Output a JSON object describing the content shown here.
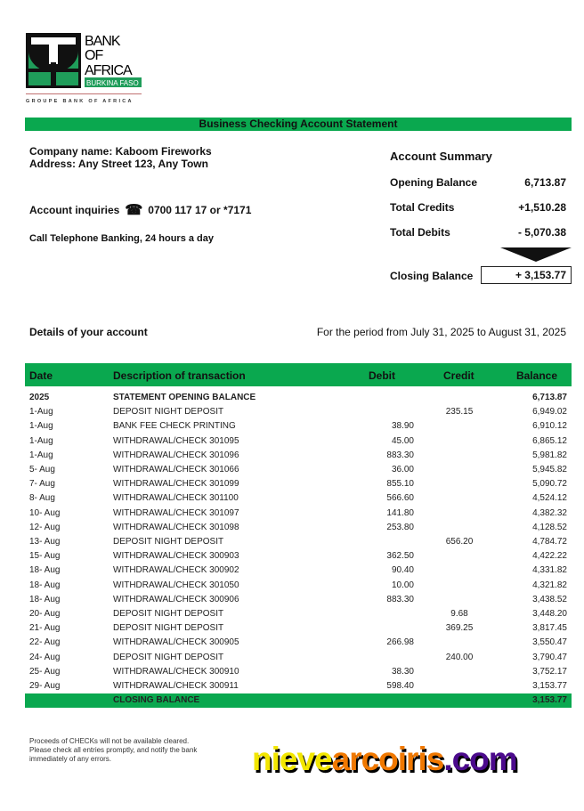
{
  "logo": {
    "line1": "BANK",
    "line2": "OF",
    "line3": "AFRICA",
    "country": "BURKINA FASO",
    "group": "GROUPE BANK OF AFRICA"
  },
  "title": "Business Checking Account Statement",
  "company": {
    "name": "Company name: Kaboom Fireworks",
    "address": "Address: Any Street 123, Any Town",
    "inquiries_label": "Account inquiries",
    "phone": "0700 117 17 or *7171",
    "telebanking": "Call Telephone Banking, 24 hours a day"
  },
  "summary": {
    "title": "Account Summary",
    "opening_label": "Opening Balance",
    "opening": "6,713.87",
    "credits_label": "Total Credits",
    "credits": "+1,510.28",
    "debits_label": "Total Debits",
    "debits": "- 5,070.38",
    "closing_label": "Closing Balance",
    "closing": "+ 3,153.77"
  },
  "details_label": "Details of your account",
  "period": "For the period from July 31, 2025 to August 31, 2025",
  "table": {
    "headers": [
      "Date",
      "Description of transaction",
      "Debit",
      "Credit",
      "Balance"
    ],
    "rows": [
      [
        "2025",
        "STATEMENT OPENING BALANCE",
        "",
        "",
        "6,713.87"
      ],
      [
        "1-Aug",
        "DEPOSIT NIGHT DEPOSIT",
        "",
        "235.15",
        "6,949.02"
      ],
      [
        "1-Aug",
        "BANK FEE CHECK PRINTING",
        "38.90",
        "",
        "6,910.12"
      ],
      [
        "1-Aug",
        "WITHDRAWAL/CHECK 301095",
        "45.00",
        "",
        "6,865.12"
      ],
      [
        "1-Aug",
        "WITHDRAWAL/CHECK 301096",
        "883.30",
        "",
        "5,981.82"
      ],
      [
        "5- Aug",
        "WITHDRAWAL/CHECK 301066",
        "36.00",
        "",
        "5,945.82"
      ],
      [
        "7- Aug",
        "WITHDRAWAL/CHECK 301099",
        "855.10",
        "",
        "5,090.72"
      ],
      [
        "8- Aug",
        "WITHDRAWAL/CHECK 301100",
        "566.60",
        "",
        "4,524.12"
      ],
      [
        "10- Aug",
        "WITHDRAWAL/CHECK 301097",
        "141.80",
        "",
        "4,382.32"
      ],
      [
        "12- Aug",
        "WITHDRAWAL/CHECK 301098",
        "253.80",
        "",
        "4,128.52"
      ],
      [
        "13- Aug",
        "DEPOSIT NIGHT DEPOSIT",
        "",
        "656.20",
        "4,784.72"
      ],
      [
        "15- Aug",
        "WITHDRAWAL/CHECK 300903",
        "362.50",
        "",
        "4,422.22"
      ],
      [
        "18- Aug",
        "WITHDRAWAL/CHECK 300902",
        "90.40",
        "",
        "4,331.82"
      ],
      [
        "18- Aug",
        "WITHDRAWAL/CHECK 301050",
        "10.00",
        "",
        "4,321.82"
      ],
      [
        "18- Aug",
        "WITHDRAWAL/CHECK 300906",
        "883.30",
        "",
        "3,438.52"
      ],
      [
        "20- Aug",
        "DEPOSIT NIGHT DEPOSIT",
        "",
        "9.68",
        "3,448.20"
      ],
      [
        "21- Aug",
        "DEPOSIT NIGHT DEPOSIT",
        "",
        "369.25",
        "3,817.45"
      ],
      [
        "22- Aug",
        "WITHDRAWAL/CHECK 300905",
        "266.98",
        "",
        "3,550.47"
      ],
      [
        "24- Aug",
        "DEPOSIT NIGHT DEPOSIT",
        "",
        "240.00",
        "3,790.47"
      ],
      [
        "25- Aug",
        "WITHDRAWAL/CHECK 300910",
        "38.30",
        "",
        "3,752.17"
      ],
      [
        "29- Aug",
        "WITHDRAWAL/CHECK 300911",
        "598.40",
        "",
        "3,153.77"
      ]
    ],
    "closing": [
      "",
      "CLOSING BALANCE",
      "",
      "",
      "3,153.77"
    ]
  },
  "footer_note": "Proceeds of CHECKs will not be available cleared. Please check all entries promptly, and notify the bank immediately of any errors.",
  "watermark": {
    "part1": "nieve",
    "part2": "arcoiris",
    "part3": ".com"
  },
  "colors": {
    "green": "#0aa84f",
    "wm_yellow": "#f2e600",
    "wm_orange": "#f07800",
    "wm_purple": "#4b0a8c"
  }
}
